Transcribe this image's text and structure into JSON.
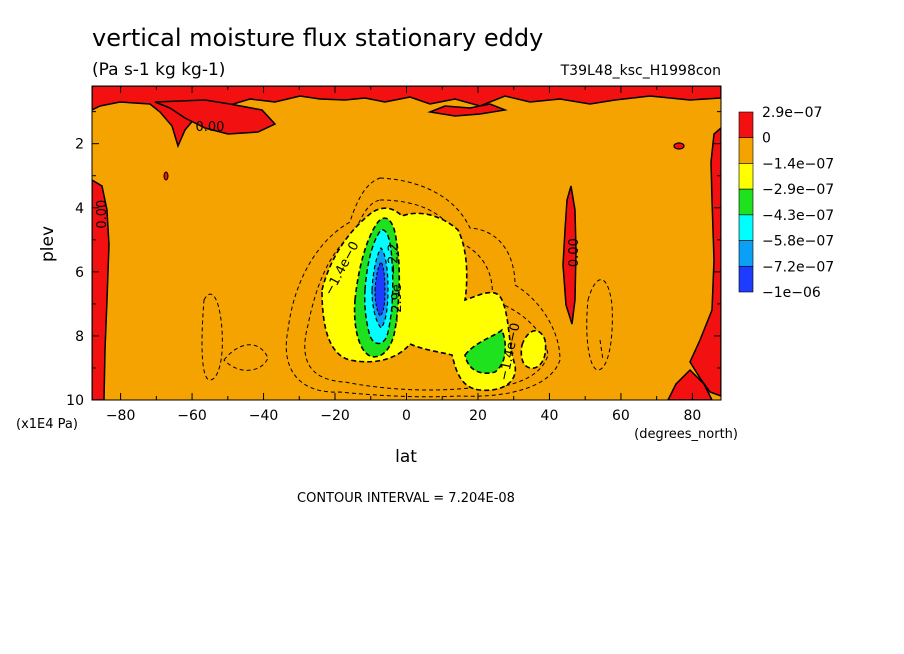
{
  "chart_data": {
    "type": "heatmap",
    "title": "vertical moisture flux stationary eddy",
    "units": "(Pa s-1 kg kg-1)",
    "run_label": "T39L48_ksc_H1998con",
    "xlabel": "lat",
    "x_units": "(degrees_north)",
    "ylabel": "plev",
    "y_units": "(x1E4 Pa)",
    "xlim": [
      -88,
      88
    ],
    "ylim": [
      10,
      0.2
    ],
    "x_ticks": [
      -80,
      -60,
      -40,
      -20,
      0,
      20,
      40,
      60,
      80
    ],
    "x_tick_labels": [
      "−80",
      "−60",
      "−40",
      "−20",
      "0",
      "20",
      "40",
      "60",
      "80"
    ],
    "y_ticks": [
      2,
      4,
      6,
      8,
      10
    ],
    "y_tick_labels": [
      "2",
      "4",
      "6",
      "8",
      "10"
    ],
    "contour_interval_text": "CONTOUR INTERVAL = 7.204E-08",
    "colorbar": {
      "colors": [
        "#f21010",
        "#f5a300",
        "#ffff00",
        "#1ee21e",
        "#00ffff",
        "#0aa0f5",
        "#1e3cff"
      ],
      "labels": [
        "2.9e−07",
        "0",
        "−1.4e−07",
        "−2.9e−07",
        "−4.3e−07",
        "−5.8e−07",
        "−7.2e−07",
        "−1e−06"
      ]
    },
    "contour_labels": [
      {
        "text": "0.00",
        "lat": -55,
        "plev": 1.5,
        "angle": 0
      },
      {
        "text": "0.00",
        "lat": -85,
        "plev": 4.2,
        "angle": -90
      },
      {
        "text": "0.00",
        "lat": 47,
        "plev": 5.4,
        "angle": -90
      },
      {
        "text": "−1.4e−0",
        "lat": -18,
        "plev": 5.9,
        "angle": -62
      },
      {
        "text": "−1.4e−0",
        "lat": 29,
        "plev": 8.5,
        "angle": -78
      },
      {
        "text": "−2.9e",
        "lat": -2.5,
        "plev": 7.0,
        "angle": -90
      },
      {
        "text": "−2.2",
        "lat": -3.5,
        "plev": 5.6,
        "angle": -90
      }
    ]
  }
}
